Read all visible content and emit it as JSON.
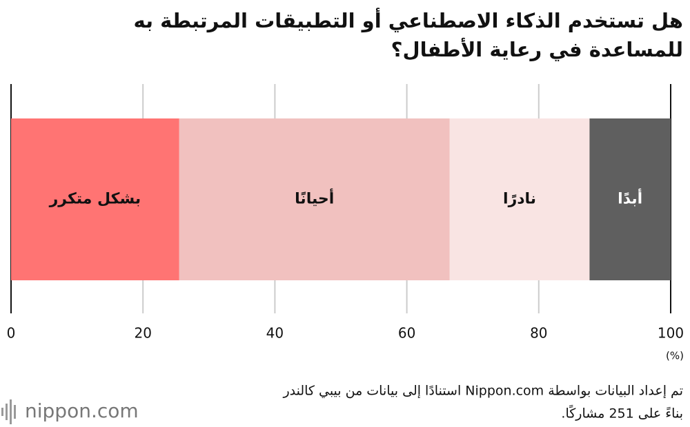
{
  "chart_data": {
    "type": "stacked-bar",
    "title": [
      "هل تستخدم الذكاء الاصطناعي أو التطبيقات المرتبطة به",
      "للمساعدة في رعاية الأطفال؟"
    ],
    "series": [
      {
        "name": "بشكل متكرر",
        "color": "#ff7473",
        "values": [
          25.5
        ]
      },
      {
        "name": "أحيانًا",
        "color": "#f1c1bf",
        "values": [
          41.0
        ]
      },
      {
        "name": "نادرًا",
        "color": "#f9e4e3",
        "values": [
          21.2
        ]
      },
      {
        "name": "أبدًا",
        "color": "#5f5f5f",
        "values": [
          12.3
        ]
      }
    ],
    "xlim": [
      0,
      100
    ],
    "xticks": [
      0,
      20,
      40,
      60,
      80,
      100
    ],
    "unit": "(%)",
    "grid": true
  },
  "footer": {
    "lines": [
      "تم إعداد البيانات بواسطة Nippon.com استنادًا إلى بيانات من بيبي كالندر",
      "بناءً على 251 مشاركًا."
    ],
    "logo": "nippon.com"
  }
}
